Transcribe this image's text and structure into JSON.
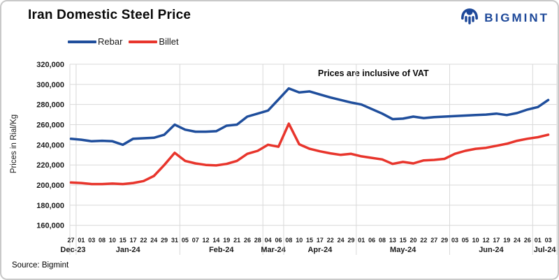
{
  "window": {
    "border_color": "#C9C9C9"
  },
  "logo": {
    "text": "BIGMINT",
    "color": "#1D4899"
  },
  "source_note": "Source: Bigmint",
  "chart_data": {
    "type": "line",
    "title": "Iran Domestic Steel Price",
    "ylabel": "Prices in Rial/Kg",
    "annotation": "Prices are inclusive  of VAT",
    "ylim": [
      160000,
      320000
    ],
    "ytick_step": 20000,
    "grid": true,
    "legend_position": "top-left",
    "gridline_color": "#D9D9D9",
    "groups": [
      {
        "month": "Dec-23",
        "days": [
          "27"
        ]
      },
      {
        "month": "Jan-24",
        "days": [
          "01",
          "03",
          "08",
          "10",
          "15",
          "17",
          "22",
          "24",
          "29",
          "31"
        ]
      },
      {
        "month": "Feb-24",
        "days": [
          "05",
          "07",
          "12",
          "14",
          "19",
          "21",
          "26",
          "28"
        ]
      },
      {
        "month": "Mar-24",
        "days": [
          "04",
          "06"
        ]
      },
      {
        "month": "Apr-24",
        "days": [
          "08",
          "10",
          "15",
          "17",
          "22",
          "24",
          "29"
        ]
      },
      {
        "month": "May-24",
        "days": [
          "01",
          "06",
          "08",
          "13",
          "15",
          "20",
          "22",
          "27",
          "29"
        ]
      },
      {
        "month": "Jun-24",
        "days": [
          "03",
          "05",
          "10",
          "12",
          "17",
          "19",
          "24",
          "26"
        ]
      },
      {
        "month": "Jul-24",
        "days": [
          "01",
          "03"
        ]
      }
    ],
    "series": [
      {
        "name": "Rebar",
        "color": "#1F4E9C",
        "values": [
          246000,
          245000,
          243500,
          244000,
          243500,
          240000,
          246000,
          246500,
          247000,
          250000,
          260000,
          255000,
          253000,
          253000,
          253500,
          259000,
          260000,
          268000,
          271000,
          274000,
          285000,
          296000,
          292000,
          293000,
          290000,
          287000,
          284500,
          282000,
          280000,
          275500,
          271000,
          265500,
          266000,
          268000,
          266500,
          267500,
          268000,
          268500,
          269000,
          269500,
          270000,
          271000,
          269500,
          271500,
          275000,
          277500,
          284500
        ]
      },
      {
        "name": "Billet",
        "color": "#E8352C",
        "values": [
          202500,
          202000,
          201000,
          201000,
          201500,
          201000,
          202000,
          204000,
          209000,
          220000,
          232000,
          224000,
          221500,
          220000,
          219500,
          221000,
          224000,
          231000,
          234000,
          240000,
          238000,
          261000,
          240500,
          236000,
          233500,
          231500,
          230000,
          231000,
          228500,
          227000,
          225500,
          221000,
          223000,
          221500,
          224500,
          225000,
          226000,
          231000,
          234000,
          236000,
          237000,
          239000,
          241000,
          244000,
          246000,
          247500,
          250000
        ]
      }
    ]
  }
}
